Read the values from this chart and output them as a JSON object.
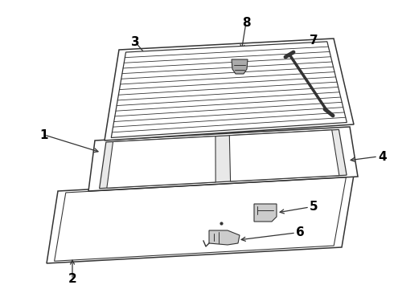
{
  "background_color": "#ffffff",
  "line_color": "#333333",
  "fig_width": 4.9,
  "fig_height": 3.6,
  "dpi": 100,
  "label_fontsize": 11,
  "label_fontweight": "bold",
  "n_glass_lines": 16
}
